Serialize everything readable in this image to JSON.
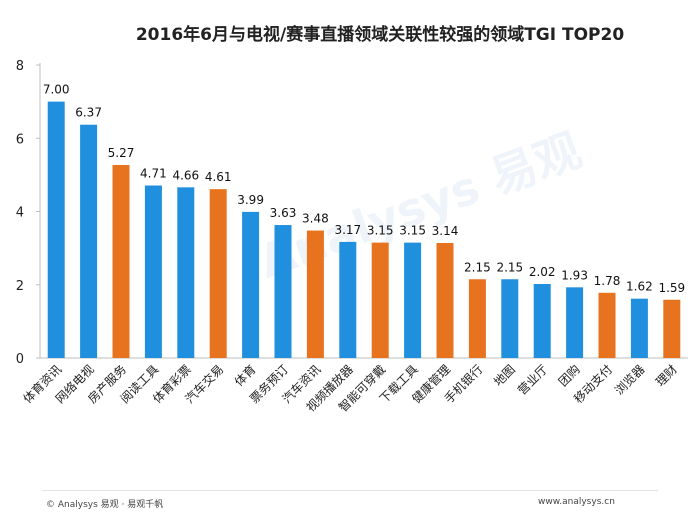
{
  "title": "2016年6月与电视/赛事直播领域关联性较强的领域TGI TOP20",
  "footer": {
    "left": "© Analysys 易观 · 易观千帆",
    "right": "www.analysys.cn"
  },
  "watermark": "Analysys 易观",
  "chart_data": {
    "type": "bar",
    "title": "2016年6月与电视/赛事直播领域关联性较强的领域TGI TOP20",
    "xlabel": "",
    "ylabel": "",
    "ylim": [
      0,
      8
    ],
    "yticks": [
      0,
      2,
      4,
      6,
      8
    ],
    "grid": false,
    "legend": "none",
    "colors": {
      "blue": "#1f8fde",
      "orange": "#e8731e"
    },
    "categories": [
      "体育资讯",
      "网络电视",
      "房产服务",
      "阅读工具",
      "体育彩票",
      "汽车交易",
      "体育",
      "票务预订",
      "汽车资讯",
      "视频播放器",
      "智能可穿戴",
      "下载工具",
      "健康管理",
      "手机银行",
      "地图",
      "营业厅",
      "团购",
      "移动支付",
      "浏览器",
      "理财"
    ],
    "values": [
      7.0,
      6.37,
      5.27,
      4.71,
      4.66,
      4.61,
      3.99,
      3.63,
      3.48,
      3.17,
      3.15,
      3.15,
      3.14,
      2.15,
      2.15,
      2.02,
      1.93,
      1.78,
      1.62,
      1.59
    ],
    "labels": [
      "7.00",
      "6.37",
      "5.27",
      "4.71",
      "4.66",
      "4.61",
      "3.99",
      "3.63",
      "3.48",
      "3.17",
      "3.15",
      "3.15",
      "3.14",
      "2.15",
      "2.15",
      "2.02",
      "1.93",
      "1.78",
      "1.62",
      "1.59"
    ],
    "bar_colors": [
      "blue",
      "blue",
      "orange",
      "blue",
      "blue",
      "orange",
      "blue",
      "blue",
      "orange",
      "blue",
      "orange",
      "blue",
      "orange",
      "orange",
      "blue",
      "blue",
      "blue",
      "orange",
      "blue",
      "orange"
    ]
  }
}
